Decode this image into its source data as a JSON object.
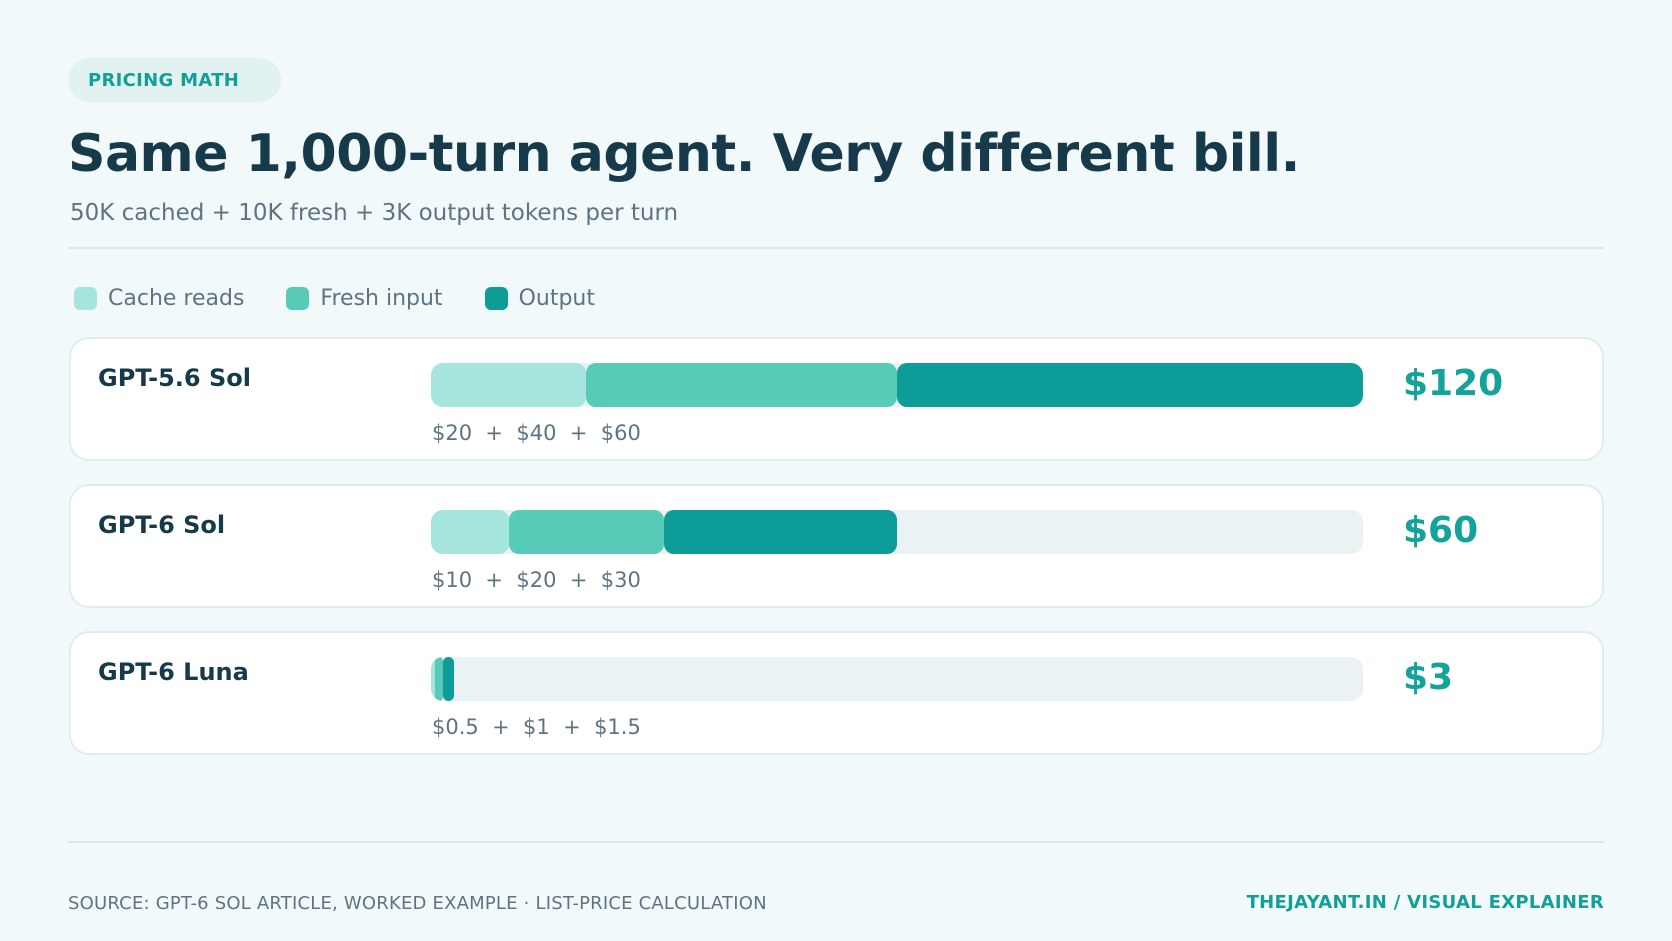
{
  "tag": "PRICING MATH",
  "title": "Same 1,000-turn agent. Very different bill.",
  "subtitle": "50K cached + 10K fresh + 3K output tokens per turn",
  "colors": {
    "cache": "#a6e5de",
    "fresh": "#57cab8",
    "output": "#0e9c98",
    "track": "#ebf2f3",
    "accent": "#13a39a"
  },
  "chart_data": {
    "type": "bar",
    "orientation": "horizontal",
    "stacked": true,
    "categories": [
      "GPT-5.6 Sol",
      "GPT-6 Sol",
      "GPT-6 Luna"
    ],
    "series": [
      {
        "name": "Cache reads",
        "values": [
          20,
          10,
          0.5
        ]
      },
      {
        "name": "Fresh input",
        "values": [
          40,
          20,
          1
        ]
      },
      {
        "name": "Output",
        "values": [
          60,
          30,
          1.5
        ]
      }
    ],
    "totals": [
      "$120",
      "$60",
      "$3"
    ],
    "breakdowns": [
      "$20  +  $40  +  $60",
      "$10  +  $20  +  $30",
      "$0.5  +  $1  +  $1.5"
    ],
    "xlim": [
      0,
      120
    ],
    "legend": "top-left"
  },
  "footer": {
    "source": "SOURCE: GPT-6 SOL ARTICLE, WORKED EXAMPLE · LIST-PRICE CALCULATION",
    "brand": "THEJAYANT.IN  /  VISUAL EXPLAINER"
  }
}
